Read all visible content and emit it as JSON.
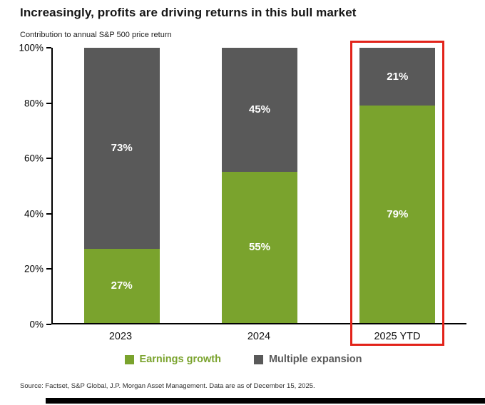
{
  "title": "Increasingly, profits are driving returns in this bull market",
  "subtitle": "Contribution to annual S&P 500 price return",
  "source": "Source: Factset, S&P Global, J.P. Morgan Asset Management. Data are as of December 15, 2025.",
  "colors": {
    "earnings_green": "#7aa32d",
    "multiple_gray": "#595959",
    "highlight_red": "#e2231a",
    "axis_black": "#000000"
  },
  "chart_data": {
    "type": "bar",
    "stacked": true,
    "title": "Increasingly, profits are driving returns in this bull market",
    "subtitle": "Contribution to annual S&P 500 price return",
    "categories": [
      "2023",
      "2024",
      "2025 YTD"
    ],
    "series": [
      {
        "name": "Earnings growth",
        "values": [
          27,
          55,
          79
        ],
        "color": "#7aa32d"
      },
      {
        "name": "Multiple expansion",
        "values": [
          73,
          45,
          21
        ],
        "color": "#595959"
      }
    ],
    "data_labels": {
      "Earnings growth": [
        "27%",
        "55%",
        "79%"
      ],
      "Multiple expansion": [
        "73%",
        "45%",
        "21%"
      ]
    },
    "yticks": [
      "0%",
      "20%",
      "40%",
      "60%",
      "80%",
      "100%"
    ],
    "ylim": [
      0,
      100
    ],
    "grid": false,
    "legend_position": "bottom",
    "legend_entries": [
      "Earnings growth",
      "Multiple expansion"
    ],
    "highlight": {
      "category": "2025 YTD",
      "color": "#e2231a"
    }
  }
}
